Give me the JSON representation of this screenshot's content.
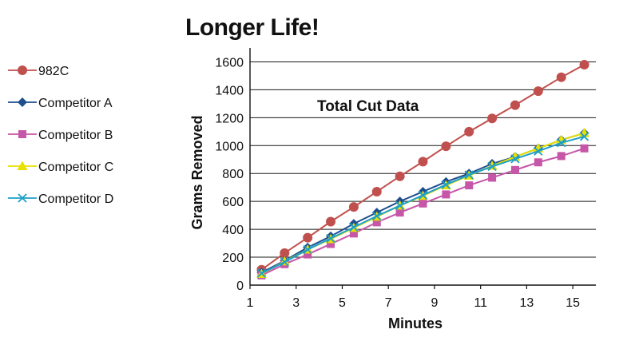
{
  "chart_data": {
    "type": "line",
    "title": "Longer Life!",
    "annotation": "Total Cut Data",
    "xlabel": "Minutes",
    "ylabel": "Grams Removed",
    "xlim": [
      1,
      16
    ],
    "ylim": [
      0,
      1700
    ],
    "x_ticks": [
      1,
      3,
      5,
      7,
      9,
      11,
      13,
      15
    ],
    "y_ticks": [
      0,
      200,
      400,
      600,
      800,
      1000,
      1200,
      1400,
      1600
    ],
    "grid": "horizontal",
    "legend_position": "left",
    "x": [
      1.5,
      2.5,
      3.5,
      4.5,
      5.5,
      6.5,
      7.5,
      8.5,
      9.5,
      10.5,
      11.5,
      12.5,
      13.5,
      14.5,
      15.5
    ],
    "series": [
      {
        "name": "982C",
        "color": "#c0504d",
        "marker": "circle",
        "values": [
          110,
          230,
          340,
          455,
          560,
          670,
          780,
          885,
          995,
          1100,
          1195,
          1290,
          1390,
          1490,
          1580
        ]
      },
      {
        "name": "Competitor A",
        "color": "#1f4e8c",
        "marker": "diamond",
        "values": [
          90,
          175,
          270,
          350,
          440,
          520,
          600,
          670,
          740,
          800,
          870,
          920,
          980,
          1040,
          1090
        ]
      },
      {
        "name": "Competitor B",
        "color": "#c656a8",
        "marker": "square",
        "values": [
          70,
          150,
          220,
          295,
          370,
          450,
          520,
          585,
          650,
          715,
          770,
          825,
          880,
          925,
          980
        ]
      },
      {
        "name": "Competitor C",
        "color": "#e8e000",
        "marker": "triangle",
        "values": [
          80,
          170,
          255,
          330,
          410,
          490,
          570,
          640,
          715,
          785,
          855,
          920,
          980,
          1040,
          1090
        ]
      },
      {
        "name": "Competitor D",
        "color": "#1e9fc8",
        "marker": "x",
        "values": [
          85,
          165,
          255,
          335,
          415,
          495,
          570,
          645,
          720,
          790,
          850,
          905,
          960,
          1020,
          1065
        ]
      }
    ]
  }
}
